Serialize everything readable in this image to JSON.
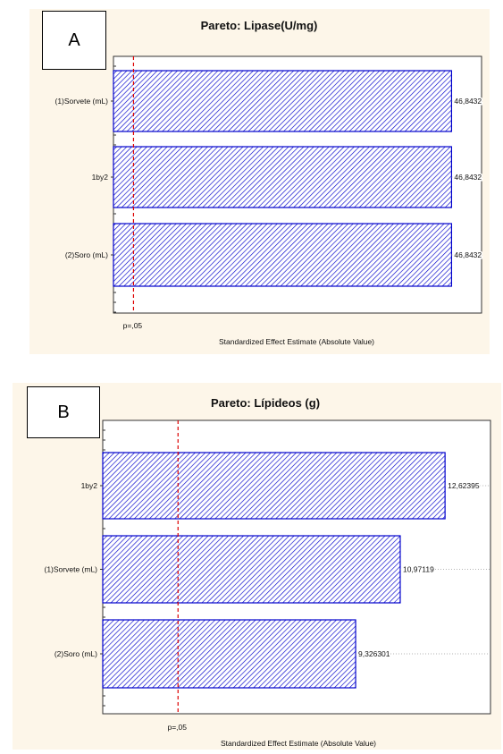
{
  "panels": [
    {
      "id": "A",
      "letter": "A"
    },
    {
      "id": "B",
      "letter": "B"
    }
  ],
  "chart_data": [
    {
      "type": "bar",
      "orientation": "horizontal",
      "title": "Pareto: Lipase(U/mg)",
      "xlabel": "Standardized Effect Estimate (Absolute Value)",
      "ylabel": "",
      "categories": [
        "(1)Sorvete (mL)",
        "1by2",
        "(2)Soro (mL)"
      ],
      "values": [
        46.8432,
        46.8432,
        46.8432
      ],
      "value_labels": [
        "46,8432",
        "46,8432",
        "46,8432"
      ],
      "xlim": [
        0,
        51
      ],
      "threshold": {
        "value": 2.776,
        "label": "p=,05"
      },
      "bar_color": "#0000cc",
      "threshold_color": "#dd0000",
      "grid": false
    },
    {
      "type": "bar",
      "orientation": "horizontal",
      "title": "Pareto: Lípideos (g)",
      "xlabel": "Standardized Effect Estimate (Absolute Value)",
      "ylabel": "",
      "categories": [
        "1by2",
        "(1)Sorvete (mL)",
        "(2)Soro (mL)"
      ],
      "values": [
        12.62395,
        10.97119,
        9.326301
      ],
      "value_labels": [
        "12,62395",
        "10,97119",
        "9,326301"
      ],
      "xlim": [
        0,
        14.3
      ],
      "threshold": {
        "value": 2.776,
        "label": "p=,05"
      },
      "bar_color": "#0000cc",
      "threshold_color": "#dd0000",
      "grid": false
    }
  ]
}
